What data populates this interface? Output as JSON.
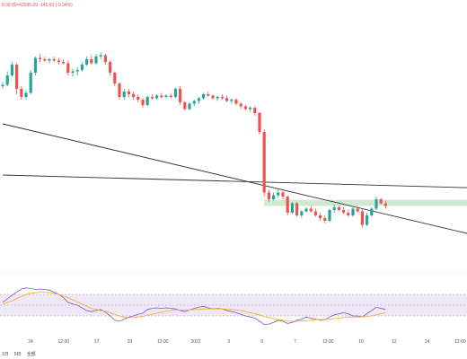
{
  "header": {
    "price_readout": "8.08 收=42585.69 -145.60 (-0.34%)"
  },
  "toolbar": {
    "range_labels": [
      "1日",
      "5日",
      "全部"
    ]
  },
  "chart_data": [
    {
      "type": "candlestick",
      "title": "",
      "ylabel": "",
      "x_ticks": [
        "24",
        "12:00",
        "27",
        "29",
        "12:00",
        "2022",
        "3",
        "5",
        "7",
        "12:00",
        "10",
        "12",
        "14",
        "12:00"
      ],
      "trendlines": [
        {
          "from": [
            0,
            45400
          ],
          "to": [
            110,
            40900
          ]
        },
        {
          "from": [
            0,
            43500
          ],
          "to": [
            110,
            42980
          ]
        }
      ],
      "zone": {
        "from_index": 56,
        "to_index": 105,
        "low": 42350,
        "high": 42580
      },
      "candles": [
        [
          46800,
          46950,
          46700,
          46850
        ],
        [
          46850,
          47350,
          46800,
          47200
        ],
        [
          47200,
          47700,
          47150,
          47600
        ],
        [
          47600,
          47650,
          46500,
          46700
        ],
        [
          46700,
          46800,
          46300,
          46400
        ],
        [
          46400,
          46650,
          46300,
          46550
        ],
        [
          46550,
          47400,
          46500,
          47300
        ],
        [
          47300,
          47900,
          47200,
          47850
        ],
        [
          47850,
          48000,
          47700,
          47800
        ],
        [
          47800,
          47900,
          47700,
          47750
        ],
        [
          47750,
          47850,
          47650,
          47800
        ],
        [
          47800,
          47900,
          47700,
          47750
        ],
        [
          47750,
          47850,
          47600,
          47700
        ],
        [
          47700,
          47800,
          47600,
          47650
        ],
        [
          47650,
          47750,
          47200,
          47300
        ],
        [
          47300,
          47450,
          47150,
          47350
        ],
        [
          47350,
          47500,
          47200,
          47400
        ],
        [
          47400,
          47700,
          47350,
          47600
        ],
        [
          47600,
          47900,
          47550,
          47800
        ],
        [
          47800,
          47950,
          47600,
          47650
        ],
        [
          47650,
          48000,
          47600,
          47900
        ],
        [
          47900,
          48050,
          47800,
          47950
        ],
        [
          47950,
          48000,
          47600,
          47700
        ],
        [
          47700,
          47750,
          47200,
          47300
        ],
        [
          47300,
          47350,
          46800,
          46900
        ],
        [
          46900,
          46950,
          46300,
          46400
        ],
        [
          46400,
          46700,
          46300,
          46600
        ],
        [
          46600,
          46700,
          46400,
          46500
        ],
        [
          46500,
          46600,
          46300,
          46400
        ],
        [
          46400,
          46500,
          46200,
          46300
        ],
        [
          46300,
          46350,
          46000,
          46100
        ],
        [
          46100,
          46450,
          46050,
          46400
        ],
        [
          46400,
          46500,
          46300,
          46350
        ],
        [
          46350,
          46500,
          46300,
          46450
        ],
        [
          46450,
          46550,
          46350,
          46400
        ],
        [
          46400,
          46500,
          46350,
          46450
        ],
        [
          46450,
          46550,
          46350,
          46400
        ],
        [
          46400,
          46750,
          46350,
          46700
        ],
        [
          46700,
          46800,
          46100,
          46200
        ],
        [
          46200,
          46250,
          45900,
          45950
        ],
        [
          45950,
          46200,
          45900,
          46150
        ],
        [
          46150,
          46300,
          46050,
          46250
        ],
        [
          46250,
          46400,
          46150,
          46350
        ],
        [
          46350,
          46550,
          46300,
          46500
        ],
        [
          46500,
          46600,
          46400,
          46450
        ],
        [
          46450,
          46500,
          46300,
          46350
        ],
        [
          46350,
          46450,
          46250,
          46400
        ],
        [
          46400,
          46500,
          46300,
          46350
        ],
        [
          46350,
          46450,
          46200,
          46250
        ],
        [
          46250,
          46350,
          46150,
          46300
        ],
        [
          46300,
          46350,
          46100,
          46150
        ],
        [
          46150,
          46200,
          45950,
          46050
        ],
        [
          46050,
          46100,
          45900,
          45950
        ],
        [
          45950,
          46050,
          45850,
          46000
        ],
        [
          46000,
          46050,
          45700,
          45800
        ],
        [
          45800,
          45850,
          45000,
          45100
        ],
        [
          45100,
          45200,
          42700,
          42850
        ],
        [
          42850,
          42950,
          42500,
          42600
        ],
        [
          42600,
          42850,
          42550,
          42750
        ],
        [
          42750,
          42950,
          42650,
          42850
        ],
        [
          42850,
          42900,
          42600,
          42700
        ],
        [
          42700,
          42750,
          42000,
          42100
        ],
        [
          42100,
          42500,
          42050,
          42450
        ],
        [
          42450,
          42500,
          41950,
          42000
        ],
        [
          42000,
          42200,
          41900,
          42150
        ],
        [
          42150,
          42300,
          42100,
          42250
        ],
        [
          42250,
          42350,
          42100,
          42150
        ],
        [
          42150,
          42250,
          41950,
          42000
        ],
        [
          42000,
          42100,
          41800,
          41900
        ],
        [
          41900,
          42000,
          41700,
          41800
        ],
        [
          41800,
          42250,
          41750,
          42200
        ],
        [
          42200,
          42400,
          42100,
          42300
        ],
        [
          42300,
          42350,
          42150,
          42200
        ],
        [
          42200,
          42300,
          42050,
          42100
        ],
        [
          42100,
          42200,
          41950,
          42000
        ],
        [
          42000,
          42300,
          41950,
          42250
        ],
        [
          42250,
          42350,
          42100,
          42150
        ],
        [
          42150,
          42250,
          41550,
          41650
        ],
        [
          41650,
          42100,
          41600,
          42000
        ],
        [
          42000,
          42300,
          41950,
          42250
        ],
        [
          42250,
          42700,
          42200,
          42600
        ],
        [
          42600,
          42650,
          42400,
          42450
        ],
        [
          42450,
          42550,
          42250,
          42350
        ]
      ]
    },
    {
      "type": "line",
      "title": "",
      "ylabel": "",
      "ylim": [
        0,
        100
      ],
      "bands": [
        30,
        50,
        70
      ],
      "series": [
        {
          "values": [
            55,
            62,
            68,
            74,
            80,
            82,
            81,
            79,
            80,
            79,
            78,
            74,
            70,
            64,
            55,
            52,
            50,
            45,
            40,
            38,
            40,
            42,
            37,
            30,
            22,
            20,
            24,
            28,
            30,
            33,
            35,
            42,
            44,
            45,
            44,
            45,
            44,
            43,
            40,
            38,
            41,
            44,
            46,
            48,
            45,
            43,
            44,
            43,
            40,
            38,
            36,
            33,
            30,
            28,
            26,
            20,
            14,
            15,
            18,
            22,
            20,
            16,
            18,
            22,
            24,
            28,
            26,
            24,
            22,
            23,
            28,
            32,
            34,
            36,
            34,
            30,
            30,
            28,
            34,
            40,
            46,
            44,
            42
          ]
        },
        {
          "values": [
            52,
            55,
            58,
            62,
            66,
            70,
            72,
            73,
            74,
            74,
            73,
            72,
            70,
            67,
            64,
            60,
            56,
            52,
            48,
            44,
            42,
            40,
            39,
            36,
            33,
            30,
            28,
            27,
            27,
            28,
            29,
            31,
            33,
            35,
            37,
            39,
            40,
            41,
            41,
            41,
            41,
            42,
            42,
            43,
            43,
            43,
            43,
            43,
            42,
            42,
            41,
            40,
            38,
            36,
            34,
            32,
            29,
            27,
            25,
            23,
            22,
            21,
            20,
            20,
            21,
            21,
            22,
            23,
            23,
            23,
            24,
            25,
            26,
            27,
            28,
            28,
            28,
            28,
            29,
            30,
            32,
            34,
            36
          ]
        }
      ]
    }
  ]
}
